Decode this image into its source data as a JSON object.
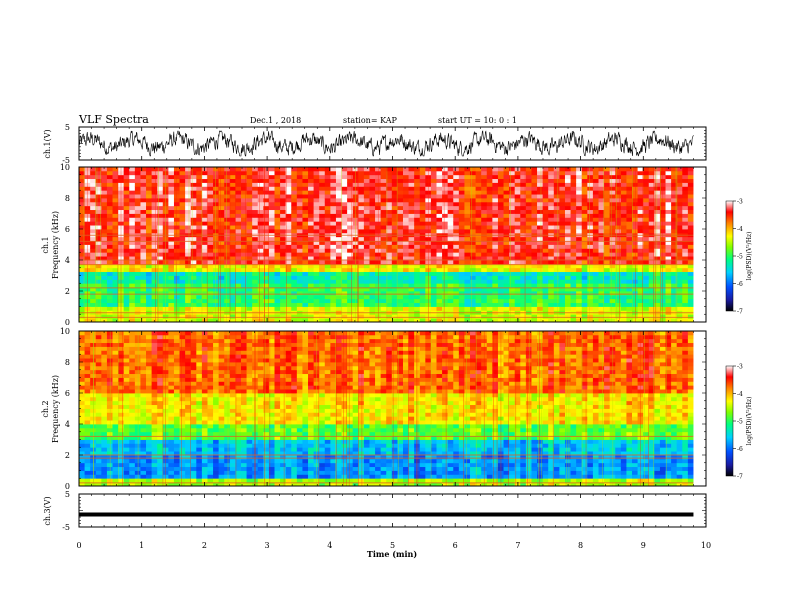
{
  "header": {
    "title": "VLF Spectra",
    "date": "Dec.1 , 2018",
    "station": "station= KAP",
    "start": "start  UT =   10: 0  : 1"
  },
  "chart_data": [
    {
      "type": "line",
      "panel": "ch1-waveform",
      "ylabel": "ch.1(V)",
      "ylim": [
        -5,
        5
      ],
      "yticks": [
        "-5",
        "5"
      ],
      "xlim": [
        0,
        10
      ],
      "description_of_values": "noisy waveform oscillating roughly between -3 and 3 V over 0–9.8 min",
      "series": [
        {
          "color": "#000000",
          "x_range": [
            0,
            9.8
          ],
          "amplitude": 3
        }
      ]
    },
    {
      "type": "heatmap",
      "panel": "ch1-spectrogram",
      "ylabel": "ch.1\nFrequency (kHz)",
      "ylim": [
        0,
        10
      ],
      "yticks": [
        "0",
        "2",
        "4",
        "6",
        "8",
        "10"
      ],
      "xlim": [
        0,
        10
      ],
      "x_range": [
        0,
        9.8
      ],
      "colorbar": {
        "label": "log(PSD)(V²/Hz)",
        "range": [
          -7,
          -3
        ],
        "ticks": [
          "-3",
          "-4",
          "-5",
          "-6",
          "-7"
        ]
      },
      "bands": [
        {
          "f": [
            3.8,
            10.0
          ],
          "level": -3.4
        },
        {
          "f": [
            3.3,
            3.8
          ],
          "level": -4.3
        },
        {
          "f": [
            2.4,
            3.3
          ],
          "level": -5.3
        },
        {
          "f": [
            1.0,
            2.4
          ],
          "level": -5.0
        },
        {
          "f": [
            0.0,
            1.0
          ],
          "level": -4.4
        }
      ],
      "lines_khz": [
        0.3,
        0.6,
        1.8,
        2.2,
        3.7,
        4.0,
        5.2,
        5.6
      ]
    },
    {
      "type": "heatmap",
      "panel": "ch2-spectrogram",
      "ylabel": "ch.2\nFrequency (kHz)",
      "ylim": [
        0,
        10
      ],
      "yticks": [
        "0",
        "2",
        "4",
        "6",
        "8",
        "10"
      ],
      "xlim": [
        0,
        10
      ],
      "x_range": [
        0,
        9.8
      ],
      "colorbar": {
        "label": "log(PSD)(V²/Hz)",
        "range": [
          -7,
          -3
        ],
        "ticks": [
          "-3",
          "-4",
          "-5",
          "-6",
          "-7"
        ]
      },
      "bands": [
        {
          "f": [
            6.0,
            10.0
          ],
          "level": -3.7
        },
        {
          "f": [
            4.0,
            6.0
          ],
          "level": -4.2
        },
        {
          "f": [
            3.0,
            4.0
          ],
          "level": -4.8
        },
        {
          "f": [
            2.0,
            3.0
          ],
          "level": -5.6
        },
        {
          "f": [
            0.4,
            2.0
          ],
          "level": -5.8
        },
        {
          "f": [
            0.0,
            0.4
          ],
          "level": -4.5
        }
      ],
      "lines_khz": [
        0.2,
        1.8,
        2.0,
        3.2
      ]
    },
    {
      "type": "line",
      "panel": "ch3-waveform",
      "ylabel": "ch.3(V)",
      "ylim": [
        -5,
        5
      ],
      "yticks": [
        "-5",
        "5"
      ],
      "xlabel": "Time (min)",
      "xlim": [
        0,
        10
      ],
      "xticks": [
        "0",
        "1",
        "2",
        "3",
        "4",
        "5",
        "6",
        "7",
        "8",
        "9",
        "10"
      ],
      "series": [
        {
          "color": "#000000",
          "x_range": [
            0,
            9.8
          ],
          "constant": -1.2
        }
      ]
    }
  ]
}
